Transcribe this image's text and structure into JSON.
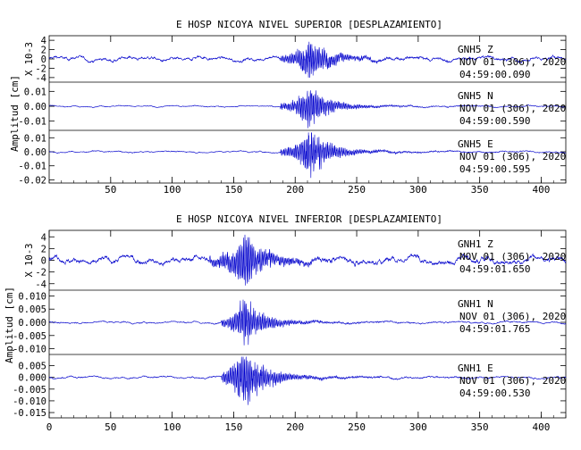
{
  "chart_data": [
    {
      "type": "line",
      "title": "E HOSP NICOYA NIVEL SUPERIOR [DESPLAZAMIENTO]",
      "ylabel": "Amplitud [cm]",
      "xlim": [
        0,
        420
      ],
      "x_ticks": [
        "50",
        "100",
        "150",
        "200",
        "250",
        "300",
        "350",
        "400"
      ],
      "grid": false,
      "line_color": "#0000cc",
      "series": [
        {
          "name": "GNH5 Z",
          "date": "NOV 01 (306), 2020",
          "time": "04:59:00.090",
          "scale_label": "X 10-3",
          "ylim": [
            -4.6,
            4.6
          ],
          "y_ticks": [
            "4",
            "2",
            "0",
            "-2",
            "-4"
          ],
          "event": {
            "onset": 188,
            "peak": 212,
            "peak_amplitude": 4.3,
            "noise_amplitude": 0.45
          }
        },
        {
          "name": "GNH5 N",
          "date": "NOV 01 (306), 2020",
          "time": "04:59:00.590",
          "ylim": [
            -0.015,
            0.015
          ],
          "y_ticks": [
            "0.01",
            "0.00",
            "-0.01"
          ],
          "event": {
            "onset": 188,
            "peak": 212,
            "peak_amplitude": 0.013,
            "noise_amplitude": 0.0005
          }
        },
        {
          "name": "GNH5 E",
          "date": "NOV 01 (306), 2020",
          "time": "04:59:00.595",
          "ylim": [
            -0.021,
            0.014
          ],
          "y_ticks": [
            "0.01",
            "0.00",
            "-0.01",
            "-0.02"
          ],
          "event": {
            "onset": 188,
            "peak": 212,
            "peak_amplitude": 0.016,
            "noise_amplitude": 0.0006
          }
        }
      ]
    },
    {
      "type": "line",
      "title": "E HOSP NICOYA NIVEL INFERIOR [DESPLAZAMIENTO]",
      "ylabel": "Amplitud [cm]",
      "xlim": [
        0,
        420
      ],
      "x_ticks": [
        "0",
        "50",
        "100",
        "150",
        "200",
        "250",
        "300",
        "350",
        "400"
      ],
      "grid": false,
      "line_color": "#0000cc",
      "series": [
        {
          "name": "GNH1 Z",
          "date": "NOV 01 (306), 2020",
          "time": "04:59:01.650",
          "scale_label": "X 10-3",
          "ylim": [
            -4.8,
            4.8
          ],
          "y_ticks": [
            "4",
            "2",
            "0",
            "-2",
            "-4"
          ],
          "event": {
            "onset": 130,
            "peak": 160,
            "peak_amplitude": 4.3,
            "noise_amplitude": 0.6
          }
        },
        {
          "name": "GNH1 N",
          "date": "NOV 01 (306), 2020",
          "time": "04:59:01.765",
          "ylim": [
            -0.0115,
            0.0115
          ],
          "y_ticks": [
            "0.010",
            "0.005",
            "0.000",
            "-0.005",
            "-0.010"
          ],
          "event": {
            "onset": 140,
            "peak": 158,
            "peak_amplitude": 0.0085,
            "noise_amplitude": 0.0004
          }
        },
        {
          "name": "GNH1 E",
          "date": "NOV 01 (306), 2020",
          "time": "04:59:00.530",
          "ylim": [
            -0.0165,
            0.009
          ],
          "y_ticks": [
            "0.005",
            "0.000",
            "-0.005",
            "-0.010",
            "-0.015"
          ],
          "event": {
            "onset": 140,
            "peak": 158,
            "peak_amplitude": 0.013,
            "noise_amplitude": 0.0005
          }
        }
      ]
    }
  ]
}
